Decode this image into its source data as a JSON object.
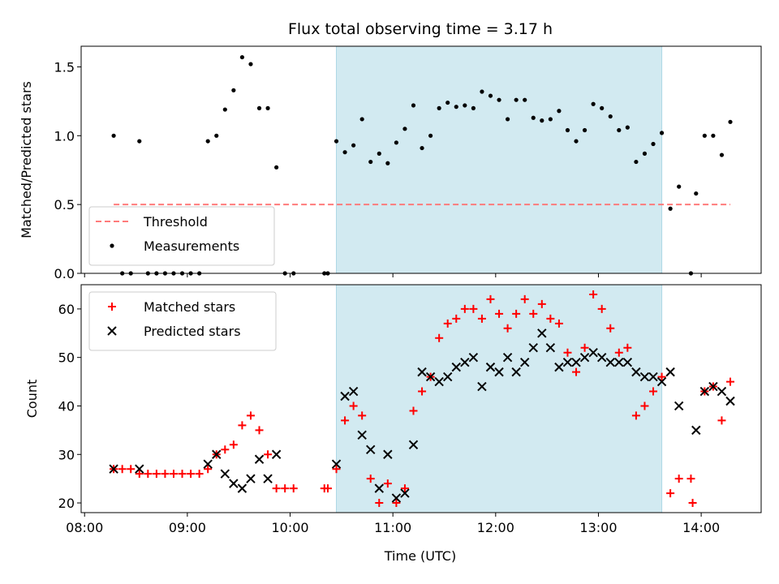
{
  "chart_data": {
    "type": "scatter",
    "title": "Flux total observing time = 3.17 h",
    "xlabel": "Time (UTC)",
    "x_ticks": [
      "08:00",
      "09:00",
      "10:00",
      "11:00",
      "12:00",
      "13:00",
      "14:00"
    ],
    "x_tick_minutes": [
      480,
      540,
      600,
      660,
      720,
      780,
      840
    ],
    "xlim": [
      "07:58",
      "14:35"
    ],
    "shaded_interval": [
      "10:27",
      "13:37"
    ],
    "shade_color": "#add8e6",
    "panels": [
      {
        "ylabel": "Matched/Predicted stars",
        "ylim": [
          0,
          1.65
        ],
        "y_ticks": [
          0.0,
          0.5,
          1.0,
          1.5
        ],
        "y_tick_labels": [
          "0.0",
          "0.5",
          "1.0",
          "1.5"
        ],
        "legend": {
          "placement": "lower-left",
          "entries": [
            "Threshold",
            "Measurements"
          ]
        },
        "series": [
          {
            "name": "Threshold",
            "style": "dashed-line",
            "color": "#ff7b7b",
            "points": [
              [
                "08:17",
                0.5
              ],
              [
                "14:17",
                0.5
              ]
            ]
          },
          {
            "name": "Measurements",
            "style": "dot",
            "color": "#000000",
            "points": [
              [
                "08:17",
                1.0
              ],
              [
                "08:22",
                0.0
              ],
              [
                "08:27",
                0.0
              ],
              [
                "08:32",
                0.96
              ],
              [
                "08:37",
                0.0
              ],
              [
                "08:42",
                0.0
              ],
              [
                "08:47",
                0.0
              ],
              [
                "08:52",
                0.0
              ],
              [
                "08:57",
                0.0
              ],
              [
                "09:02",
                0.0
              ],
              [
                "09:07",
                0.0
              ],
              [
                "09:12",
                0.96
              ],
              [
                "09:17",
                1.0
              ],
              [
                "09:22",
                1.19
              ],
              [
                "09:27",
                1.33
              ],
              [
                "09:32",
                1.57
              ],
              [
                "09:37",
                1.52
              ],
              [
                "09:42",
                1.2
              ],
              [
                "09:47",
                1.2
              ],
              [
                "09:52",
                0.77
              ],
              [
                "09:57",
                0.0
              ],
              [
                "10:02",
                0.0
              ],
              [
                "10:20",
                0.0
              ],
              [
                "10:22",
                0.0
              ],
              [
                "10:27",
                0.96
              ],
              [
                "10:32",
                0.88
              ],
              [
                "10:37",
                0.93
              ],
              [
                "10:42",
                1.12
              ],
              [
                "10:47",
                0.81
              ],
              [
                "10:52",
                0.87
              ],
              [
                "10:57",
                0.8
              ],
              [
                "11:02",
                0.95
              ],
              [
                "11:07",
                1.05
              ],
              [
                "11:12",
                1.22
              ],
              [
                "11:17",
                0.91
              ],
              [
                "11:22",
                1.0
              ],
              [
                "11:27",
                1.2
              ],
              [
                "11:32",
                1.24
              ],
              [
                "11:37",
                1.21
              ],
              [
                "11:42",
                1.22
              ],
              [
                "11:47",
                1.2
              ],
              [
                "11:52",
                1.32
              ],
              [
                "11:57",
                1.29
              ],
              [
                "12:02",
                1.26
              ],
              [
                "12:07",
                1.12
              ],
              [
                "12:12",
                1.26
              ],
              [
                "12:17",
                1.26
              ],
              [
                "12:22",
                1.13
              ],
              [
                "12:27",
                1.11
              ],
              [
                "12:32",
                1.12
              ],
              [
                "12:37",
                1.18
              ],
              [
                "12:42",
                1.04
              ],
              [
                "12:47",
                0.96
              ],
              [
                "12:52",
                1.04
              ],
              [
                "12:57",
                1.23
              ],
              [
                "13:02",
                1.2
              ],
              [
                "13:07",
                1.14
              ],
              [
                "13:12",
                1.04
              ],
              [
                "13:17",
                1.06
              ],
              [
                "13:22",
                0.81
              ],
              [
                "13:27",
                0.87
              ],
              [
                "13:32",
                0.94
              ],
              [
                "13:37",
                1.02
              ],
              [
                "13:42",
                0.47
              ],
              [
                "13:47",
                0.63
              ],
              [
                "13:54",
                0.0
              ],
              [
                "13:57",
                0.58
              ],
              [
                "14:02",
                1.0
              ],
              [
                "14:07",
                1.0
              ],
              [
                "14:12",
                0.86
              ],
              [
                "14:17",
                1.1
              ]
            ]
          }
        ]
      },
      {
        "ylabel": "Count",
        "ylim": [
          18,
          65
        ],
        "y_ticks": [
          20,
          30,
          40,
          50,
          60
        ],
        "y_tick_labels": [
          "20",
          "30",
          "40",
          "50",
          "60"
        ],
        "legend": {
          "placement": "upper-left",
          "entries": [
            "Matched stars",
            "Predicted stars"
          ]
        },
        "series": [
          {
            "name": "Matched stars",
            "style": "plus",
            "color": "#ff0000",
            "points": [
              [
                "08:17",
                27
              ],
              [
                "08:22",
                27
              ],
              [
                "08:27",
                27
              ],
              [
                "08:32",
                26
              ],
              [
                "08:37",
                26
              ],
              [
                "08:42",
                26
              ],
              [
                "08:47",
                26
              ],
              [
                "08:52",
                26
              ],
              [
                "08:57",
                26
              ],
              [
                "09:02",
                26
              ],
              [
                "09:07",
                26
              ],
              [
                "09:12",
                27
              ],
              [
                "09:17",
                30
              ],
              [
                "09:22",
                31
              ],
              [
                "09:27",
                32
              ],
              [
                "09:32",
                36
              ],
              [
                "09:37",
                38
              ],
              [
                "09:42",
                35
              ],
              [
                "09:47",
                30
              ],
              [
                "09:52",
                23
              ],
              [
                "09:57",
                23
              ],
              [
                "10:02",
                23
              ],
              [
                "10:20",
                23
              ],
              [
                "10:22",
                23
              ],
              [
                "10:27",
                27
              ],
              [
                "10:32",
                37
              ],
              [
                "10:37",
                40
              ],
              [
                "10:42",
                38
              ],
              [
                "10:47",
                25
              ],
              [
                "10:52",
                20
              ],
              [
                "10:57",
                24
              ],
              [
                "11:02",
                20
              ],
              [
                "11:07",
                23
              ],
              [
                "11:12",
                39
              ],
              [
                "11:17",
                43
              ],
              [
                "11:22",
                46
              ],
              [
                "11:27",
                54
              ],
              [
                "11:32",
                57
              ],
              [
                "11:37",
                58
              ],
              [
                "11:42",
                60
              ],
              [
                "11:47",
                60
              ],
              [
                "11:52",
                58
              ],
              [
                "11:57",
                62
              ],
              [
                "12:02",
                59
              ],
              [
                "12:07",
                56
              ],
              [
                "12:12",
                59
              ],
              [
                "12:17",
                62
              ],
              [
                "12:22",
                59
              ],
              [
                "12:27",
                61
              ],
              [
                "12:32",
                58
              ],
              [
                "12:37",
                57
              ],
              [
                "12:42",
                51
              ],
              [
                "12:47",
                47
              ],
              [
                "12:52",
                52
              ],
              [
                "12:57",
                63
              ],
              [
                "13:02",
                60
              ],
              [
                "13:07",
                56
              ],
              [
                "13:12",
                51
              ],
              [
                "13:17",
                52
              ],
              [
                "13:22",
                38
              ],
              [
                "13:27",
                40
              ],
              [
                "13:32",
                43
              ],
              [
                "13:37",
                46
              ],
              [
                "13:42",
                22
              ],
              [
                "13:47",
                25
              ],
              [
                "13:54",
                25
              ],
              [
                "13:55",
                20
              ],
              [
                "14:02",
                43
              ],
              [
                "14:07",
                44
              ],
              [
                "14:12",
                37
              ],
              [
                "14:17",
                45
              ]
            ]
          },
          {
            "name": "Predicted stars",
            "style": "x",
            "color": "#000000",
            "points": [
              [
                "08:17",
                27
              ],
              [
                "08:32",
                27
              ],
              [
                "09:12",
                28
              ],
              [
                "09:17",
                30
              ],
              [
                "09:22",
                26
              ],
              [
                "09:27",
                24
              ],
              [
                "09:32",
                23
              ],
              [
                "09:37",
                25
              ],
              [
                "09:42",
                29
              ],
              [
                "09:47",
                25
              ],
              [
                "09:52",
                30
              ],
              [
                "10:27",
                28
              ],
              [
                "10:32",
                42
              ],
              [
                "10:37",
                43
              ],
              [
                "10:42",
                34
              ],
              [
                "10:47",
                31
              ],
              [
                "10:52",
                23
              ],
              [
                "10:57",
                30
              ],
              [
                "11:02",
                21
              ],
              [
                "11:07",
                22
              ],
              [
                "11:12",
                32
              ],
              [
                "11:17",
                47
              ],
              [
                "11:22",
                46
              ],
              [
                "11:27",
                45
              ],
              [
                "11:32",
                46
              ],
              [
                "11:37",
                48
              ],
              [
                "11:42",
                49
              ],
              [
                "11:47",
                50
              ],
              [
                "11:52",
                44
              ],
              [
                "11:57",
                48
              ],
              [
                "12:02",
                47
              ],
              [
                "12:07",
                50
              ],
              [
                "12:12",
                47
              ],
              [
                "12:17",
                49
              ],
              [
                "12:22",
                52
              ],
              [
                "12:27",
                55
              ],
              [
                "12:32",
                52
              ],
              [
                "12:37",
                48
              ],
              [
                "12:42",
                49
              ],
              [
                "12:47",
                49
              ],
              [
                "12:52",
                50
              ],
              [
                "12:57",
                51
              ],
              [
                "13:02",
                50
              ],
              [
                "13:07",
                49
              ],
              [
                "13:12",
                49
              ],
              [
                "13:17",
                49
              ],
              [
                "13:22",
                47
              ],
              [
                "13:27",
                46
              ],
              [
                "13:32",
                46
              ],
              [
                "13:37",
                45
              ],
              [
                "13:42",
                47
              ],
              [
                "13:47",
                40
              ],
              [
                "13:57",
                35
              ],
              [
                "14:02",
                43
              ],
              [
                "14:07",
                44
              ],
              [
                "14:12",
                43
              ],
              [
                "14:17",
                41
              ]
            ]
          }
        ]
      }
    ]
  }
}
